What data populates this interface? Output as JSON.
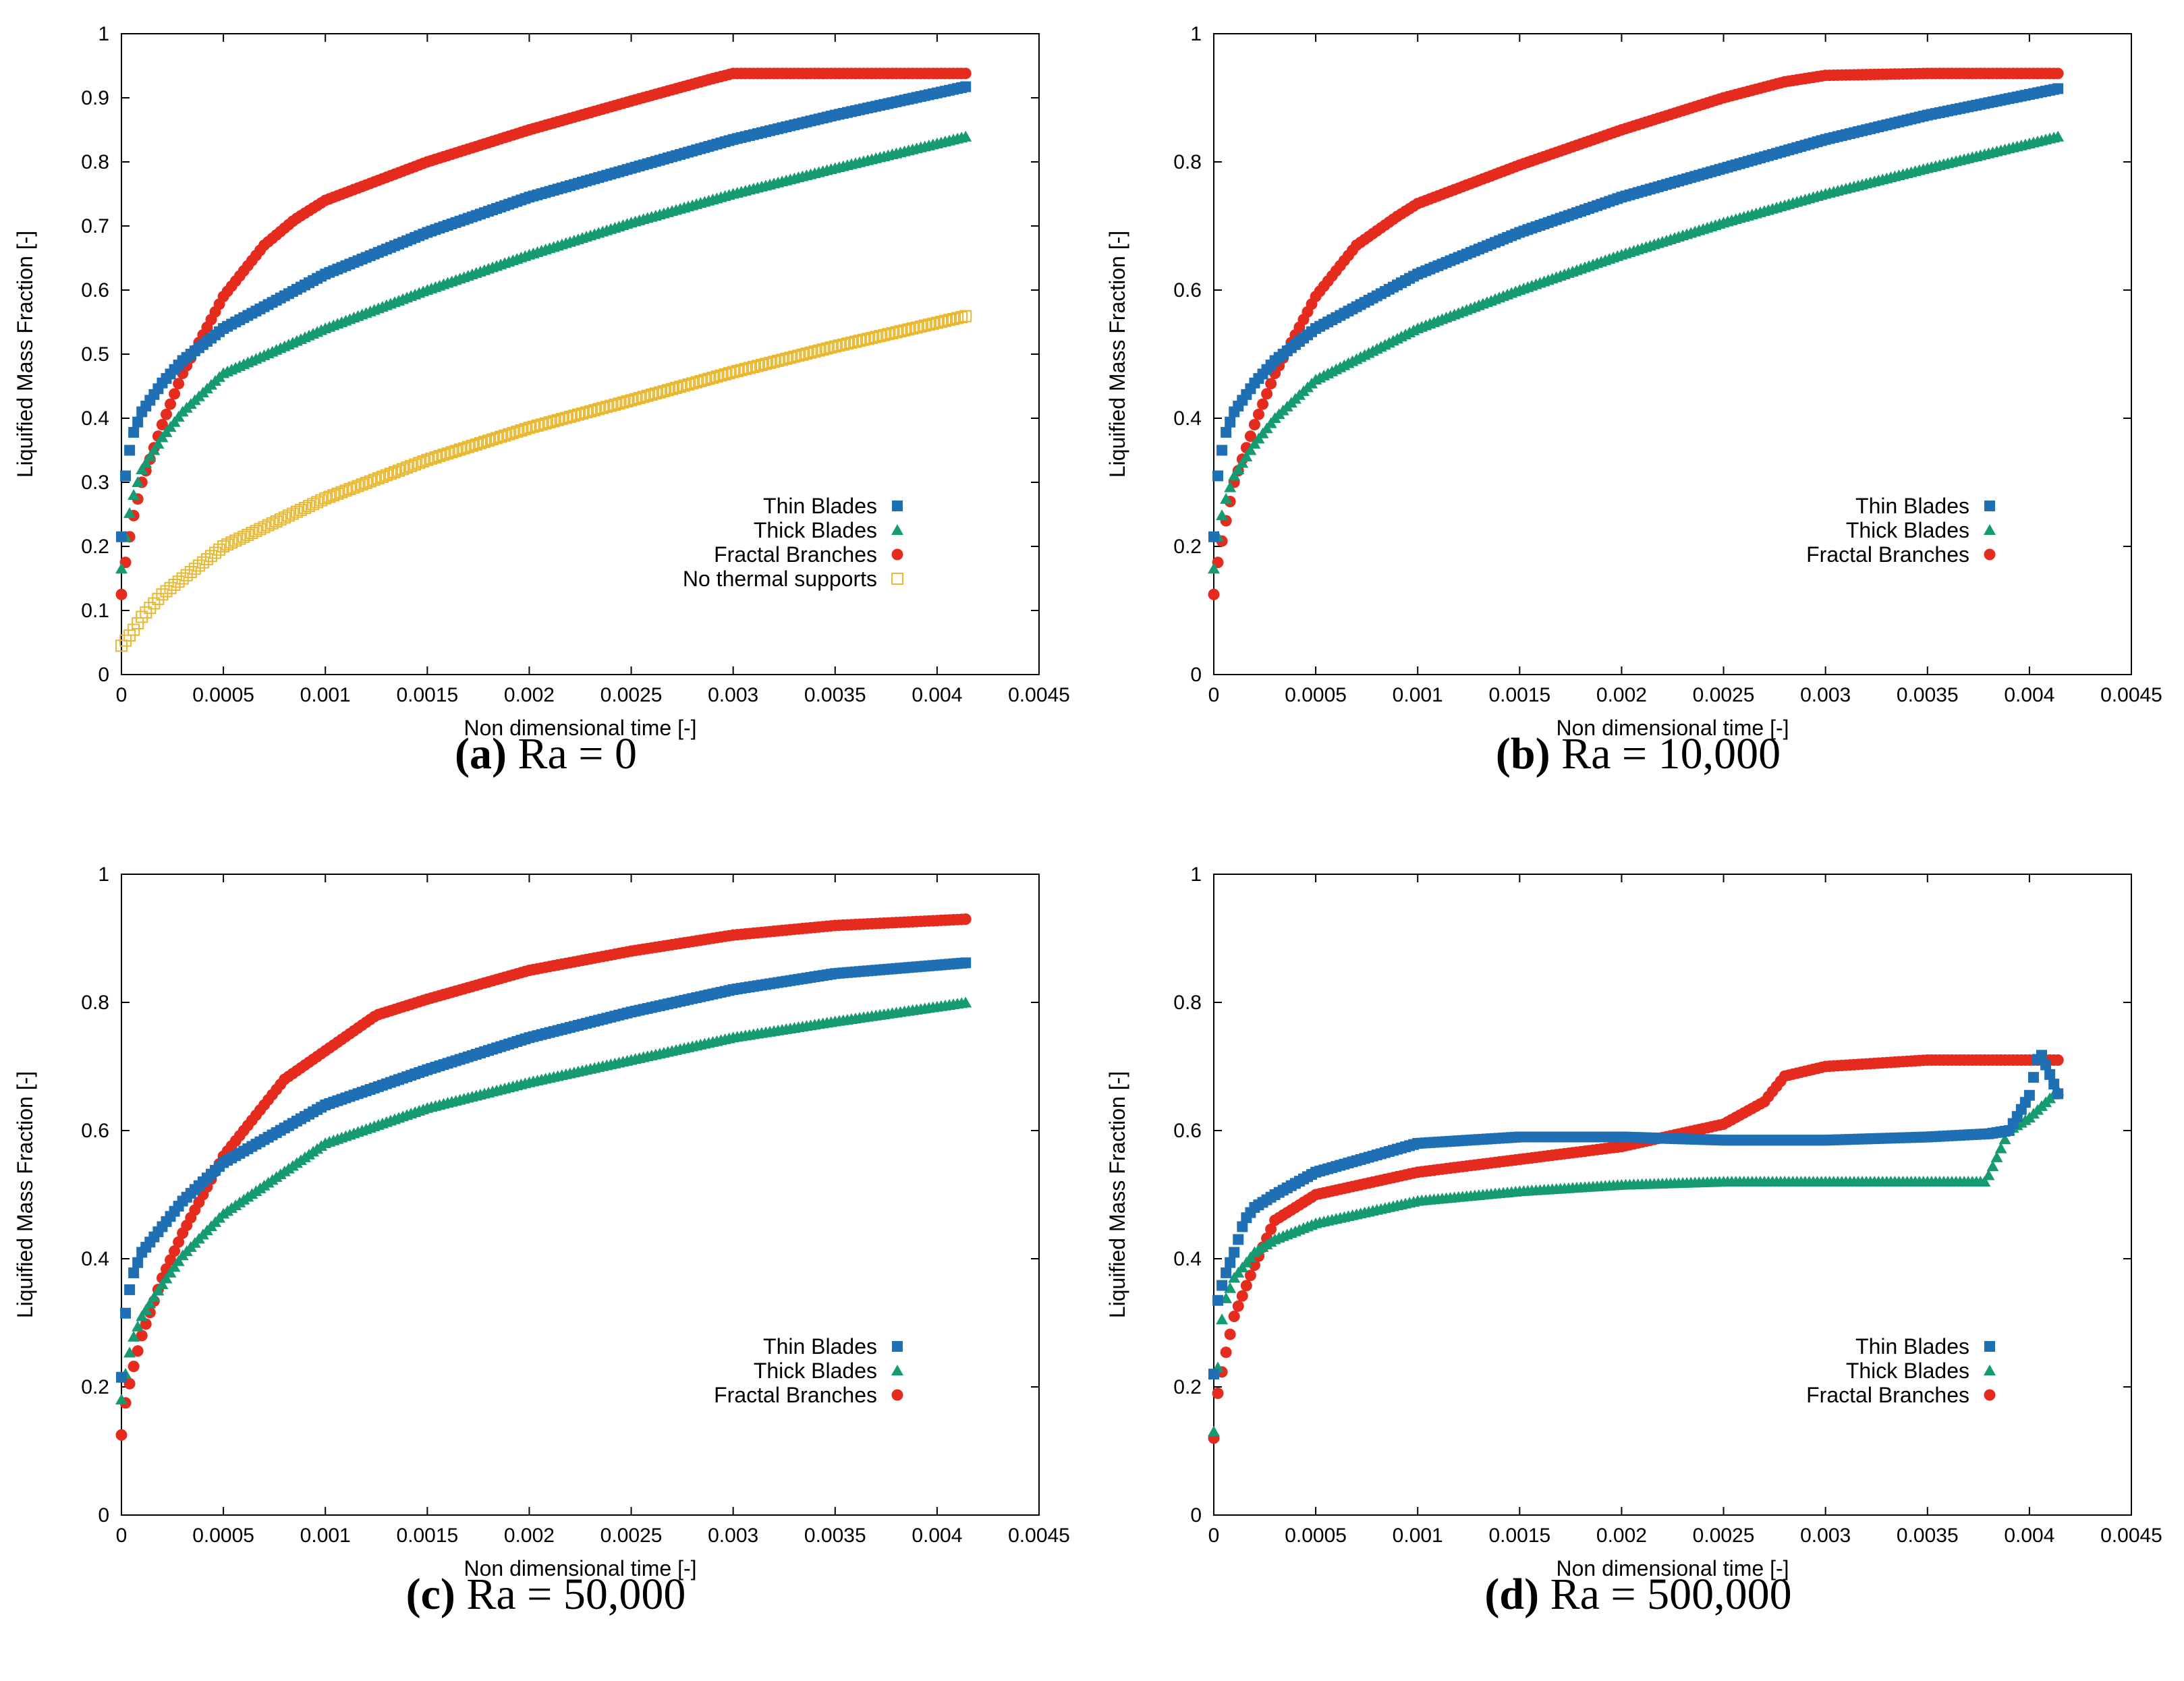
{
  "colors": {
    "thin": "#1f6fb4",
    "thick": "#159a72",
    "fractal": "#e52a1e",
    "none": "#e8b830"
  },
  "chart_data": [
    {
      "type": "scatter",
      "panel_label": "(a)",
      "caption_text": "Ra = 0",
      "xlabel": "Non dimensional time [-]",
      "ylabel": "Liquified Mass Fraction [-]",
      "xlim": [
        0,
        0.0045
      ],
      "ylim": [
        0,
        1
      ],
      "xticks": [
        "0",
        "0.0005",
        "0.001",
        "0.0015",
        "0.002",
        "0.0025",
        "0.003",
        "0.0035",
        "0.004",
        "0.0045"
      ],
      "yticks": [
        "0",
        "0.1",
        "0.2",
        "0.3",
        "0.4",
        "0.5",
        "0.6",
        "0.7",
        "0.8",
        "0.9",
        "1"
      ],
      "legend": "bottom-right",
      "series": [
        {
          "name": "Thin Blades",
          "marker": "square",
          "color": "#1f6fb4",
          "x": [
            0,
            2e-05,
            5e-05,
            0.0001,
            0.0002,
            0.0003,
            0.0005,
            0.001,
            0.0015,
            0.002,
            0.0025,
            0.003,
            0.0035,
            0.00415
          ],
          "y": [
            0.215,
            0.31,
            0.37,
            0.41,
            0.455,
            0.49,
            0.54,
            0.625,
            0.69,
            0.745,
            0.79,
            0.835,
            0.873,
            0.918
          ]
        },
        {
          "name": "Thick Blades",
          "marker": "triangle",
          "color": "#159a72",
          "x": [
            0,
            2e-05,
            5e-05,
            0.0001,
            0.0002,
            0.0003,
            0.0005,
            0.001,
            0.0015,
            0.002,
            0.0025,
            0.003,
            0.0035,
            0.00415
          ],
          "y": [
            0.165,
            0.215,
            0.27,
            0.32,
            0.37,
            0.41,
            0.47,
            0.54,
            0.6,
            0.655,
            0.705,
            0.75,
            0.79,
            0.84
          ]
        },
        {
          "name": "Fractal Branches",
          "marker": "circle",
          "color": "#e52a1e",
          "x": [
            0,
            2e-05,
            5e-05,
            0.0001,
            0.0002,
            0.0003,
            0.0005,
            0.0007,
            0.00085,
            0.001,
            0.0015,
            0.002,
            0.0025,
            0.0029,
            0.003,
            0.0035,
            0.00415
          ],
          "y": [
            0.125,
            0.175,
            0.235,
            0.3,
            0.39,
            0.47,
            0.59,
            0.67,
            0.71,
            0.74,
            0.8,
            0.85,
            0.895,
            0.93,
            0.938,
            0.938,
            0.938
          ]
        },
        {
          "name": "No thermal supports",
          "marker": "open-square",
          "color": "#e8b830",
          "x": [
            0,
            5e-05,
            0.0001,
            0.0002,
            0.0003,
            0.0005,
            0.001,
            0.0015,
            0.002,
            0.0025,
            0.003,
            0.0035,
            0.00415
          ],
          "y": [
            0.045,
            0.065,
            0.09,
            0.125,
            0.15,
            0.2,
            0.275,
            0.335,
            0.385,
            0.428,
            0.472,
            0.512,
            0.56
          ]
        }
      ]
    },
    {
      "type": "scatter",
      "panel_label": "(b)",
      "caption_text": "Ra = 10,000",
      "xlabel": "Non dimensional time [-]",
      "ylabel": "Liquified Mass Fraction [-]",
      "xlim": [
        0,
        0.0045
      ],
      "ylim": [
        0,
        1
      ],
      "xticks": [
        "0",
        "0.0005",
        "0.001",
        "0.0015",
        "0.002",
        "0.0025",
        "0.003",
        "0.0035",
        "0.004",
        "0.0045"
      ],
      "yticks": [
        "0",
        "0.2",
        "0.4",
        "0.6",
        "0.8",
        "1"
      ],
      "legend": "bottom-right",
      "series": [
        {
          "name": "Thin Blades",
          "marker": "square",
          "color": "#1f6fb4",
          "x": [
            0,
            2e-05,
            5e-05,
            0.0001,
            0.0002,
            0.0003,
            0.0005,
            0.001,
            0.0015,
            0.002,
            0.0025,
            0.003,
            0.0035,
            0.00415
          ],
          "y": [
            0.215,
            0.31,
            0.37,
            0.41,
            0.455,
            0.49,
            0.54,
            0.625,
            0.69,
            0.745,
            0.79,
            0.835,
            0.873,
            0.915
          ]
        },
        {
          "name": "Thick Blades",
          "marker": "triangle",
          "color": "#159a72",
          "x": [
            0,
            2e-05,
            5e-05,
            0.0001,
            0.0002,
            0.0003,
            0.0005,
            0.001,
            0.0015,
            0.002,
            0.0025,
            0.003,
            0.0035,
            0.00415
          ],
          "y": [
            0.165,
            0.215,
            0.265,
            0.31,
            0.36,
            0.4,
            0.46,
            0.54,
            0.6,
            0.655,
            0.705,
            0.75,
            0.79,
            0.84
          ]
        },
        {
          "name": "Fractal Branches",
          "marker": "circle",
          "color": "#e52a1e",
          "x": [
            0,
            2e-05,
            5e-05,
            0.0001,
            0.0002,
            0.0003,
            0.0005,
            0.0007,
            0.0009,
            0.001,
            0.0015,
            0.002,
            0.0025,
            0.0028,
            0.003,
            0.0035,
            0.00415
          ],
          "y": [
            0.125,
            0.175,
            0.225,
            0.3,
            0.39,
            0.47,
            0.59,
            0.67,
            0.715,
            0.735,
            0.795,
            0.85,
            0.9,
            0.925,
            0.935,
            0.938,
            0.938
          ]
        }
      ]
    },
    {
      "type": "scatter",
      "panel_label": "(c)",
      "caption_text": "Ra = 50,000",
      "xlabel": "Non dimensional time [-]",
      "ylabel": "Liquified Mass Fraction [-]",
      "xlim": [
        0,
        0.0045
      ],
      "ylim": [
        0,
        1
      ],
      "xticks": [
        "0",
        "0.0005",
        "0.001",
        "0.0015",
        "0.002",
        "0.0025",
        "0.003",
        "0.0035",
        "0.004",
        "0.0045"
      ],
      "yticks": [
        "0",
        "0.2",
        "0.4",
        "0.6",
        "0.8",
        "1"
      ],
      "legend": "bottom-right",
      "series": [
        {
          "name": "Thin Blades",
          "marker": "square",
          "color": "#1f6fb4",
          "x": [
            0,
            2e-05,
            5e-05,
            0.0001,
            0.0002,
            0.0003,
            0.0005,
            0.001,
            0.0015,
            0.002,
            0.0025,
            0.003,
            0.0035,
            0.00415
          ],
          "y": [
            0.215,
            0.315,
            0.37,
            0.41,
            0.45,
            0.49,
            0.55,
            0.64,
            0.695,
            0.745,
            0.785,
            0.82,
            0.845,
            0.862
          ]
        },
        {
          "name": "Thick Blades",
          "marker": "triangle",
          "color": "#159a72",
          "x": [
            0,
            2e-05,
            5e-05,
            0.0001,
            0.0002,
            0.0003,
            0.0005,
            0.001,
            0.0015,
            0.002,
            0.0025,
            0.003,
            0.0035,
            0.00415
          ],
          "y": [
            0.18,
            0.22,
            0.27,
            0.31,
            0.36,
            0.405,
            0.47,
            0.58,
            0.635,
            0.675,
            0.71,
            0.745,
            0.77,
            0.8
          ]
        },
        {
          "name": "Fractal Branches",
          "marker": "circle",
          "color": "#e52a1e",
          "x": [
            0,
            2e-05,
            5e-05,
            0.0001,
            0.0002,
            0.0003,
            0.0005,
            0.0008,
            0.00125,
            0.0015,
            0.002,
            0.0025,
            0.003,
            0.0035,
            0.00415
          ],
          "y": [
            0.125,
            0.175,
            0.22,
            0.28,
            0.37,
            0.44,
            0.56,
            0.68,
            0.78,
            0.805,
            0.85,
            0.88,
            0.905,
            0.92,
            0.93
          ]
        }
      ]
    },
    {
      "type": "scatter",
      "panel_label": "(d)",
      "caption_text": "Ra = 500,000",
      "xlabel": "Non dimensional time [-]",
      "ylabel": "Liquified Mass Fraction [-]",
      "xlim": [
        0,
        0.0045
      ],
      "ylim": [
        0,
        1
      ],
      "xticks": [
        "0",
        "0.0005",
        "0.001",
        "0.0015",
        "0.002",
        "0.0025",
        "0.003",
        "0.0035",
        "0.004",
        "0.0045"
      ],
      "yticks": [
        "0",
        "0.2",
        "0.4",
        "0.6",
        "0.8",
        "1"
      ],
      "legend": "bottom-right",
      "series": [
        {
          "name": "Thin Blades",
          "marker": "square",
          "color": "#1f6fb4",
          "x": [
            0,
            2e-05,
            5e-05,
            0.0001,
            0.00015,
            0.0002,
            0.0003,
            0.0005,
            0.001,
            0.0015,
            0.002,
            0.0025,
            0.003,
            0.0035,
            0.0038,
            0.0039,
            0.004,
            0.00405,
            0.00415
          ],
          "y": [
            0.22,
            0.335,
            0.37,
            0.41,
            0.46,
            0.48,
            0.5,
            0.535,
            0.58,
            0.59,
            0.59,
            0.585,
            0.585,
            0.59,
            0.595,
            0.6,
            0.655,
            0.725,
            0.65
          ]
        },
        {
          "name": "Thick Blades",
          "marker": "triangle",
          "color": "#159a72",
          "x": [
            0,
            3e-05,
            5e-05,
            0.0001,
            0.0002,
            0.0003,
            0.0005,
            0.001,
            0.0015,
            0.002,
            0.0025,
            0.003,
            0.0035,
            0.00378,
            0.0038,
            0.0039,
            0.004,
            0.0041,
            0.00415
          ],
          "y": [
            0.13,
            0.28,
            0.33,
            0.37,
            0.41,
            0.43,
            0.455,
            0.49,
            0.505,
            0.515,
            0.52,
            0.52,
            0.52,
            0.52,
            0.53,
            0.6,
            0.62,
            0.65,
            0.665
          ]
        },
        {
          "name": "Fractal Branches",
          "marker": "circle",
          "color": "#e52a1e",
          "x": [
            0,
            2e-05,
            5e-05,
            0.0001,
            0.0002,
            0.0003,
            0.0005,
            0.001,
            0.0015,
            0.002,
            0.0025,
            0.0027,
            0.0028,
            0.003,
            0.0035,
            0.00415
          ],
          "y": [
            0.12,
            0.19,
            0.24,
            0.31,
            0.39,
            0.46,
            0.5,
            0.535,
            0.555,
            0.575,
            0.61,
            0.645,
            0.685,
            0.7,
            0.71,
            0.71
          ]
        }
      ]
    }
  ]
}
